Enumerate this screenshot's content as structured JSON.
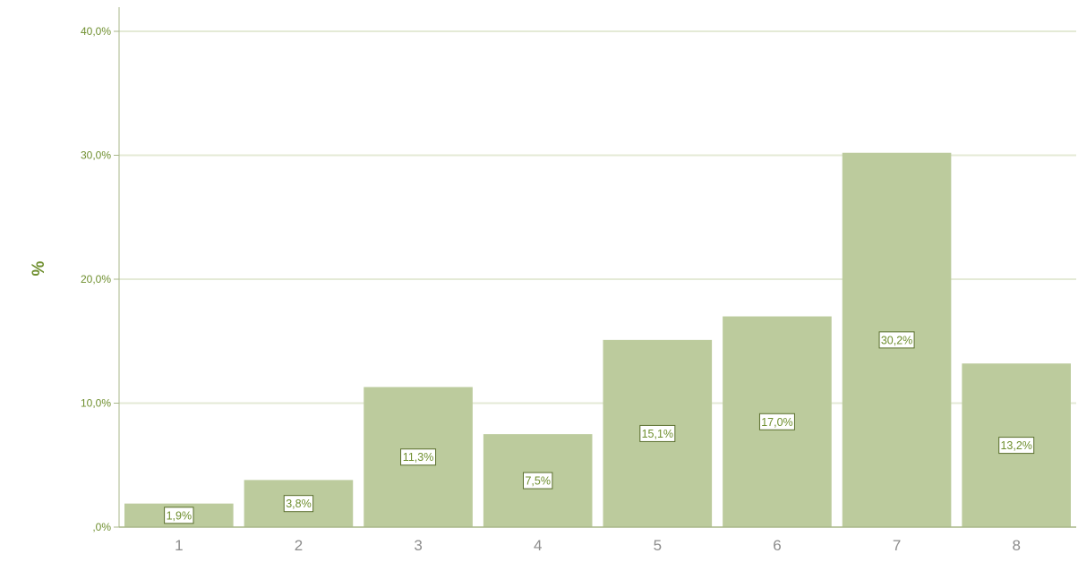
{
  "chart_data": {
    "type": "bar",
    "title": "",
    "xlabel": "",
    "ylabel": "%",
    "categories": [
      "1",
      "2",
      "3",
      "4",
      "5",
      "6",
      "7",
      "8"
    ],
    "values": [
      1.9,
      3.8,
      11.3,
      7.5,
      15.1,
      17.0,
      30.2,
      13.2
    ],
    "value_labels": [
      "1,9%",
      "3,8%",
      "11,3%",
      "7,5%",
      "15,1%",
      "17,0%",
      "30,2%",
      "13,2%"
    ],
    "yticks": [
      0,
      10,
      20,
      30,
      40
    ],
    "ytick_labels": [
      ",0%",
      "10,0%",
      "20,0%",
      "30,0%",
      "40,0%"
    ],
    "ylim": [
      0,
      40
    ],
    "grid": true,
    "colors": {
      "bar": "#bccb9d",
      "text": "#6f8f2f",
      "grid": "#e4ead6",
      "axis": "#a8b789",
      "label_border": "#596e2c"
    }
  }
}
